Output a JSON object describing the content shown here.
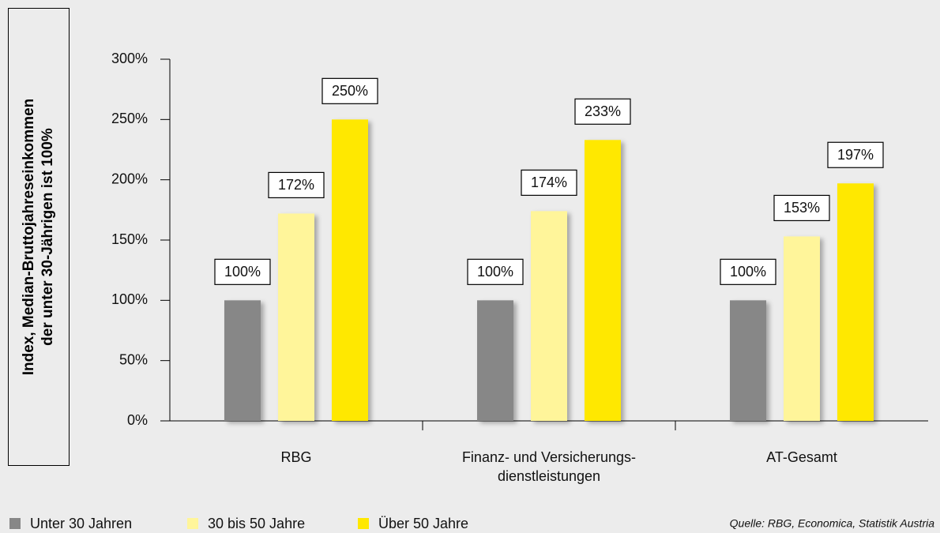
{
  "chart_data": {
    "type": "bar",
    "y_label": "Index, Median-Bruttojahreseinkommen\nder unter 30-Jährigen ist 100%",
    "categories": [
      "RBG",
      "Finanz- und Versicherungs-\ndienstleistungen",
      "AT-Gesamt"
    ],
    "series": [
      {
        "name": "Unter 30 Jahren",
        "color": "#878787",
        "values": [
          100,
          100,
          100
        ],
        "value_labels": [
          "100%",
          "100%",
          "100%"
        ]
      },
      {
        "name": "30 bis 50 Jahre",
        "color": "#fff59a",
        "values": [
          172,
          174,
          153
        ],
        "value_labels": [
          "172%",
          "174%",
          "153%"
        ]
      },
      {
        "name": "Über 50 Jahre",
        "color": "#ffe800",
        "values": [
          250,
          233,
          197
        ],
        "value_labels": [
          "250%",
          "233%",
          "197%"
        ]
      }
    ],
    "ylim": [
      0,
      300
    ],
    "yticks": [
      {
        "value": 0,
        "label": "0%"
      },
      {
        "value": 50,
        "label": "50%"
      },
      {
        "value": 100,
        "label": "100%"
      },
      {
        "value": 150,
        "label": "150%"
      },
      {
        "value": 200,
        "label": "200%"
      },
      {
        "value": 250,
        "label": "250%"
      },
      {
        "value": 300,
        "label": "300%"
      }
    ],
    "source": "Quelle: RBG, Economica, Statistik Austria"
  }
}
